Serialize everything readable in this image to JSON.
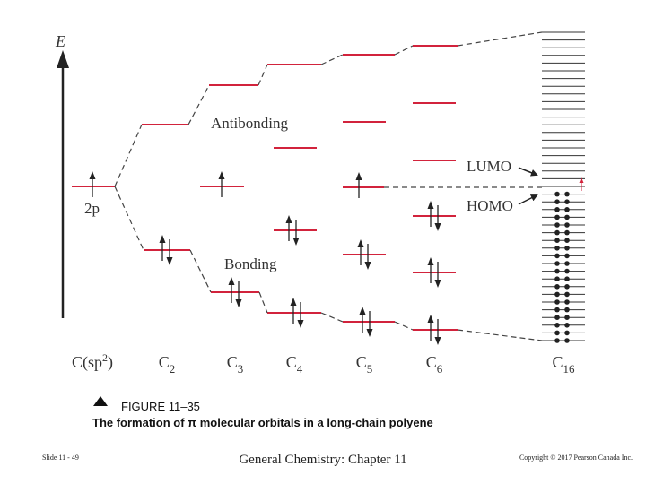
{
  "figure": {
    "axis_label": "E",
    "orbital_label": "2p",
    "antibonding": "Antibonding",
    "bonding": "Bonding",
    "lumo": "LUMO",
    "homo": "HOMO",
    "columns": [
      {
        "label": "C(sp",
        "sup": "2",
        "end": ")"
      },
      {
        "label": "C",
        "sub": "2"
      },
      {
        "label": "C",
        "sub": "3"
      },
      {
        "label": "C",
        "sub": "4"
      },
      {
        "label": "C",
        "sub": "5"
      },
      {
        "label": "C",
        "sub": "6"
      },
      {
        "label": "C",
        "sub": "16"
      }
    ]
  },
  "caption": {
    "figure_number": "FIGURE 11–35",
    "text": "The formation of π molecular orbitals in a long-chain polyene"
  },
  "footer": {
    "slide": "Slide 11 - 49",
    "chapter": "General Chemistry: Chapter 11",
    "copyright": "Copyright © 2017 Pearson Canada Inc."
  }
}
